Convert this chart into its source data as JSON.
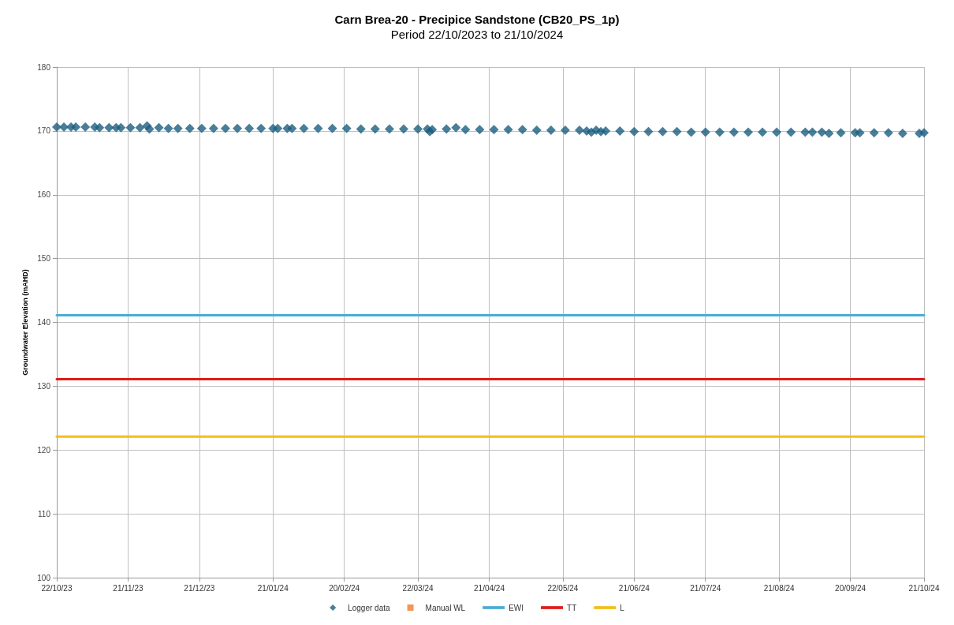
{
  "chart_data": {
    "type": "scatter",
    "title": "Carn Brea-20 - Precipice Sandstone (CB20_PS_1p)",
    "subtitle": "Period 22/10/2023 to 21/10/2024",
    "ylabel": "Groundwater Elevation (mAHD)",
    "xlim": [
      "2023-10-22",
      "2024-10-21"
    ],
    "ylim": [
      100,
      180
    ],
    "yticks": [
      100,
      110,
      120,
      130,
      140,
      150,
      160,
      170,
      180
    ],
    "xticks": [
      {
        "value": "2023-10-22",
        "label": "22/10/23"
      },
      {
        "value": "2023-11-21",
        "label": "21/11/23"
      },
      {
        "value": "2023-12-21",
        "label": "21/12/23"
      },
      {
        "value": "2024-01-21",
        "label": "21/01/24"
      },
      {
        "value": "2024-02-20",
        "label": "20/02/24"
      },
      {
        "value": "2024-03-22",
        "label": "22/03/24"
      },
      {
        "value": "2024-04-21",
        "label": "21/04/24"
      },
      {
        "value": "2024-05-22",
        "label": "22/05/24"
      },
      {
        "value": "2024-06-21",
        "label": "21/06/24"
      },
      {
        "value": "2024-07-21",
        "label": "21/07/24"
      },
      {
        "value": "2024-08-21",
        "label": "21/08/24"
      },
      {
        "value": "2024-09-20",
        "label": "20/09/24"
      },
      {
        "value": "2024-10-21",
        "label": "21/10/24"
      }
    ],
    "grid": true,
    "legend": "bottom",
    "series": [
      {
        "name": "Logger data",
        "marker": "diamond",
        "color": "#1b5e80",
        "x": [
          "2023-10-22",
          "2023-10-25",
          "2023-10-28",
          "2023-10-30",
          "2023-11-03",
          "2023-11-07",
          "2023-11-09",
          "2023-11-13",
          "2023-11-16",
          "2023-11-18",
          "2023-11-22",
          "2023-11-26",
          "2023-11-29",
          "2023-11-30",
          "2023-12-04",
          "2023-12-08",
          "2023-12-12",
          "2023-12-17",
          "2023-12-22",
          "2023-12-27",
          "2024-01-01",
          "2024-01-06",
          "2024-01-11",
          "2024-01-16",
          "2024-01-21",
          "2024-01-23",
          "2024-01-27",
          "2024-01-29",
          "2024-02-03",
          "2024-02-09",
          "2024-02-15",
          "2024-02-21",
          "2024-02-27",
          "2024-03-04",
          "2024-03-10",
          "2024-03-16",
          "2024-03-22",
          "2024-03-26",
          "2024-03-27",
          "2024-03-28",
          "2024-04-03",
          "2024-04-07",
          "2024-04-11",
          "2024-04-17",
          "2024-04-23",
          "2024-04-29",
          "2024-05-05",
          "2024-05-11",
          "2024-05-17",
          "2024-05-23",
          "2024-05-29",
          "2024-06-01",
          "2024-06-03",
          "2024-06-05",
          "2024-06-07",
          "2024-06-09",
          "2024-06-15",
          "2024-06-21",
          "2024-06-27",
          "2024-07-03",
          "2024-07-09",
          "2024-07-15",
          "2024-07-21",
          "2024-07-27",
          "2024-08-02",
          "2024-08-08",
          "2024-08-14",
          "2024-08-20",
          "2024-08-26",
          "2024-09-01",
          "2024-09-04",
          "2024-09-08",
          "2024-09-11",
          "2024-09-16",
          "2024-09-22",
          "2024-09-24",
          "2024-09-30",
          "2024-10-06",
          "2024-10-12",
          "2024-10-19",
          "2024-10-21"
        ],
        "values": [
          170.6,
          170.6,
          170.6,
          170.6,
          170.6,
          170.6,
          170.5,
          170.5,
          170.5,
          170.5,
          170.5,
          170.5,
          170.8,
          170.3,
          170.5,
          170.4,
          170.4,
          170.4,
          170.4,
          170.4,
          170.4,
          170.4,
          170.4,
          170.4,
          170.4,
          170.4,
          170.4,
          170.4,
          170.4,
          170.4,
          170.4,
          170.4,
          170.3,
          170.3,
          170.3,
          170.3,
          170.3,
          170.3,
          169.9,
          170.2,
          170.3,
          170.5,
          170.2,
          170.2,
          170.2,
          170.2,
          170.2,
          170.1,
          170.1,
          170.1,
          170.1,
          170.0,
          169.8,
          170.1,
          169.9,
          170.0,
          170.0,
          169.9,
          169.9,
          169.9,
          169.9,
          169.8,
          169.8,
          169.8,
          169.8,
          169.8,
          169.8,
          169.8,
          169.8,
          169.8,
          169.8,
          169.8,
          169.6,
          169.7,
          169.7,
          169.7,
          169.7,
          169.7,
          169.6,
          169.6,
          169.7
        ]
      },
      {
        "name": "Manual WL",
        "marker": "square",
        "color": "#ed7d31"
      },
      {
        "name": "EWI",
        "type": "line",
        "marker": "none",
        "color": "#4bacd6",
        "x": [
          "2023-10-22",
          "2024-10-21"
        ],
        "values": [
          141.1,
          141.1
        ]
      },
      {
        "name": "TT",
        "type": "line",
        "marker": "none",
        "color": "#e01b1b",
        "x": [
          "2023-10-22",
          "2024-10-21"
        ],
        "values": [
          131.1,
          131.1
        ]
      },
      {
        "name": "L",
        "type": "line",
        "marker": "none",
        "color": "#f2be1a",
        "x": [
          "2023-10-22",
          "2024-10-21"
        ],
        "values": [
          122.1,
          122.1
        ]
      }
    ]
  }
}
